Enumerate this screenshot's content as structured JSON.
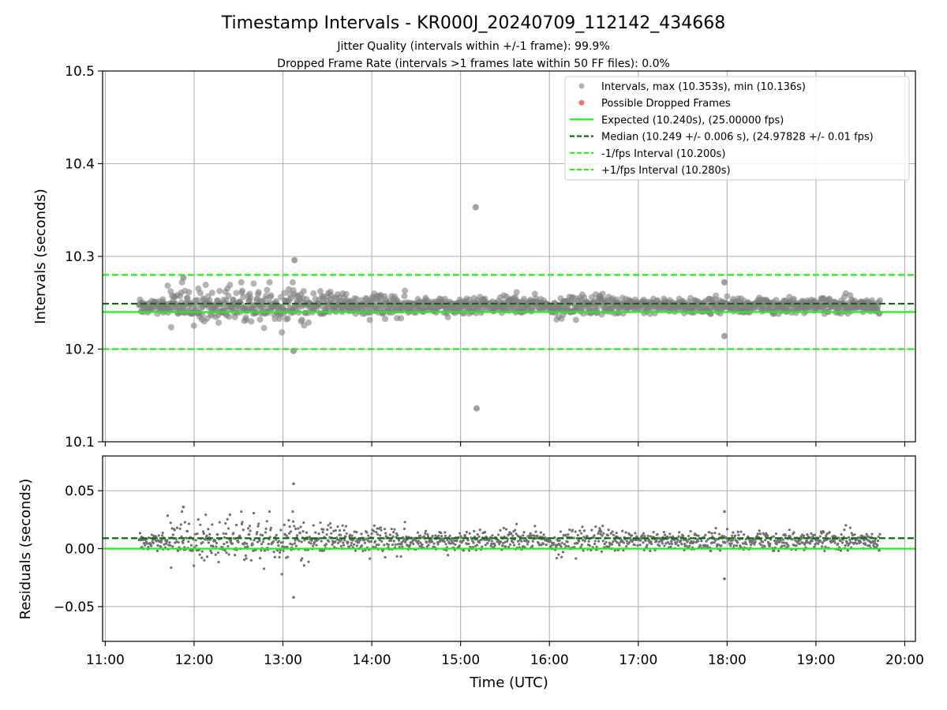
{
  "chart_data": [
    {
      "panel": "top",
      "type": "scatter",
      "title": "Timestamp Intervals - KR000J_20240709_112142_434668",
      "subtitle_lines": [
        "Jitter Quality (intervals within +/-1 frame): 99.9%",
        "Dropped Frame Rate (intervals >1 frames late within 50 FF files): 0.0%"
      ],
      "ylabel": "Intervals (seconds)",
      "xlim_hours": [
        10.97,
        20.12
      ],
      "ylim": [
        10.1,
        10.5
      ],
      "yticks": [
        10.1,
        10.2,
        10.3,
        10.4,
        10.5
      ],
      "ytick_labels": [
        "10.1",
        "10.2",
        "10.3",
        "10.4",
        "10.5"
      ],
      "grid": true,
      "legend_position": "top-right",
      "series": [
        {
          "name": "Intervals, max (10.353s), min (10.136s)",
          "color": "#808080",
          "notable_points": [
            {
              "x_hour": 15.17,
              "y": 10.353
            },
            {
              "x_hour": 15.18,
              "y": 10.136
            },
            {
              "x_hour": 13.13,
              "y": 10.296
            },
            {
              "x_hour": 13.12,
              "y": 10.198
            },
            {
              "x_hour": 17.97,
              "y": 10.214
            },
            {
              "x_hour": 17.97,
              "y": 10.272
            },
            {
              "x_hour": 11.88,
              "y": 10.277
            }
          ],
          "x_range_hours": [
            11.38,
            19.72
          ],
          "typical_y_range": [
            10.235,
            10.258
          ]
        },
        {
          "name": "Possible Dropped Frames",
          "color": "#ff6b6b",
          "points": []
        },
        {
          "name": "Expected (10.240s), (25.00000 fps)",
          "color": "#22ee22",
          "style": "solid",
          "y": 10.24
        },
        {
          "name": "Median (10.249 +/- 0.006 s), (24.97828 +/- 0.01 fps)",
          "color": "#0a6e0a",
          "style": "dashed",
          "y": 10.249
        },
        {
          "name": "-1/fps Interval (10.200s)",
          "color": "#22ee22",
          "style": "dashed",
          "y": 10.2
        },
        {
          "name": "+1/fps Interval (10.280s)",
          "color": "#22ee22",
          "style": "dashed",
          "y": 10.28
        }
      ]
    },
    {
      "panel": "bottom",
      "type": "scatter",
      "xlabel": "Time (UTC)",
      "ylabel": "Residuals (seconds)",
      "ylim": [
        -0.08,
        0.08
      ],
      "yticks": [
        -0.05,
        0.0,
        0.05
      ],
      "ytick_labels": [
        "−0.05",
        "0.00",
        "0.05"
      ],
      "xticks_hours": [
        11,
        12,
        13,
        14,
        15,
        16,
        17,
        18,
        19,
        20
      ],
      "xtick_labels": [
        "11:00",
        "12:00",
        "13:00",
        "14:00",
        "15:00",
        "16:00",
        "17:00",
        "18:00",
        "19:00",
        "20:00"
      ],
      "grid": true,
      "series": [
        {
          "name": "Residuals",
          "color": "#707070",
          "notable_points": [
            {
              "x_hour": 13.12,
              "y": 0.056
            },
            {
              "x_hour": 13.12,
              "y": -0.042
            },
            {
              "x_hour": 17.97,
              "y": -0.026
            },
            {
              "x_hour": 17.97,
              "y": 0.032
            },
            {
              "x_hour": 11.88,
              "y": 0.036
            }
          ],
          "x_range_hours": [
            11.38,
            19.72
          ],
          "typical_y_range": [
            -0.005,
            0.018
          ]
        },
        {
          "name": "Median",
          "color": "#0a6e0a",
          "style": "dashed",
          "y": 0.009
        },
        {
          "name": "Expected",
          "color": "#22ee22",
          "style": "solid",
          "y": 0.0
        }
      ]
    }
  ]
}
